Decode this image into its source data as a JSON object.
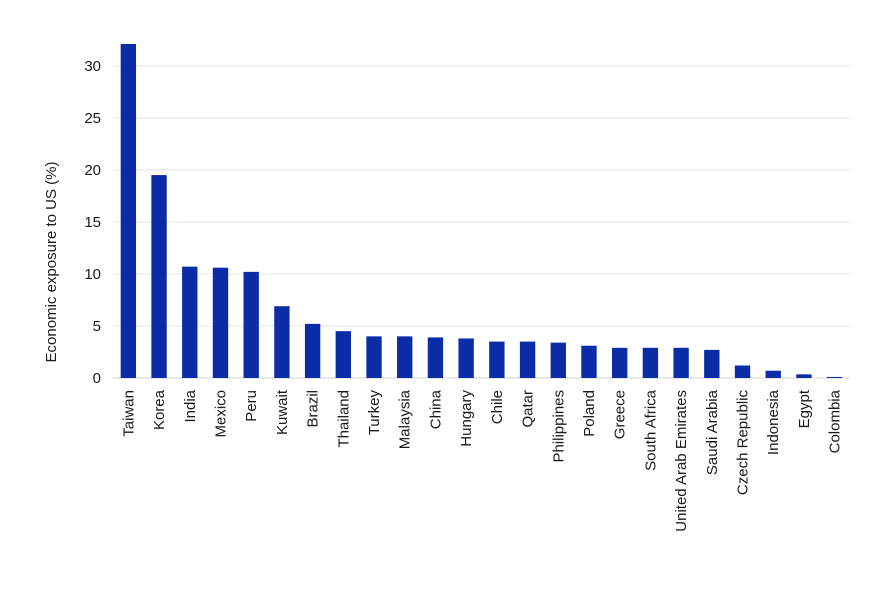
{
  "chart_data": {
    "type": "bar",
    "title": "",
    "xlabel": "",
    "ylabel": "Economic exposure to US (%)",
    "ylim": [
      0,
      32
    ],
    "yticks": [
      0,
      5,
      10,
      15,
      20,
      25,
      30
    ],
    "grid": true,
    "bar_color": "#0a2ca7",
    "categories": [
      "Taiwan",
      "Korea",
      "India",
      "Mexico",
      "Peru",
      "Kuwait",
      "Brazil",
      "Thailand",
      "Turkey",
      "Malaysia",
      "China",
      "Hungary",
      "Chile",
      "Qatar",
      "Philippines",
      "Poland",
      "Greece",
      "South Africa",
      "United Arab Emirates",
      "Saudi Arabia",
      "Czech Republic",
      "Indonesia",
      "Egypt",
      "Colombia"
    ],
    "values": [
      32.1,
      19.5,
      10.7,
      10.6,
      10.2,
      6.9,
      5.2,
      4.5,
      4.0,
      4.0,
      3.9,
      3.8,
      3.5,
      3.5,
      3.4,
      3.1,
      2.9,
      2.9,
      2.9,
      2.7,
      1.2,
      0.7,
      0.35,
      0.1
    ]
  }
}
